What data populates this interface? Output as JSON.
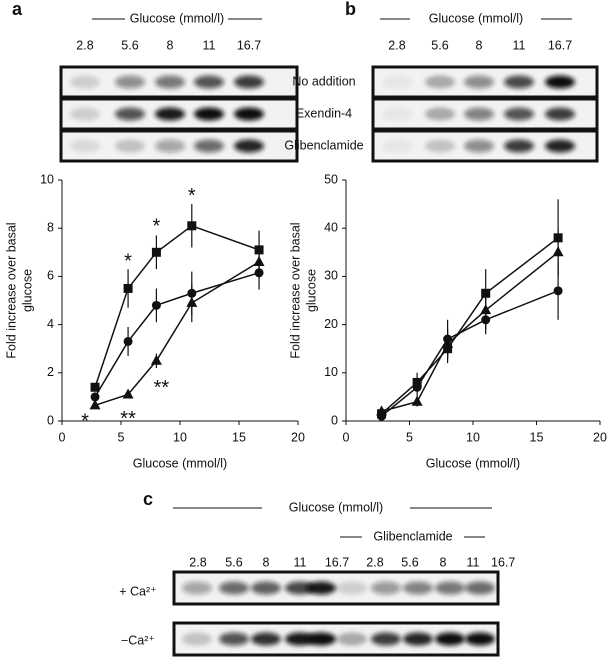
{
  "panel_labels": [
    "a",
    "b",
    "c"
  ],
  "blots": {
    "a": {
      "header": "Glucose (mmol/l)",
      "concentrations": [
        2.8,
        5.6,
        8,
        11,
        16.7
      ],
      "rows": [
        "No addition",
        "Exendin-4",
        "Glibenclamide"
      ]
    },
    "b": {
      "header": "Glucose (mmol/l)",
      "concentrations": [
        2.8,
        5.6,
        8,
        11,
        16.7
      ]
    },
    "c": {
      "header": "Glucose (mmol/l)",
      "subheader": "Glibenclamide",
      "concentrations": [
        2.8,
        5.6,
        8,
        11,
        16.7,
        2.8,
        5.6,
        8,
        11,
        16.7
      ],
      "rows": [
        "+ Ca²⁺",
        "−Ca²⁺"
      ]
    }
  },
  "chart_data": [
    {
      "type": "line",
      "xlabel": "Glucose (mmol/l)",
      "ylabel": [
        "Fold increase over basal",
        "glucose"
      ],
      "x": [
        2.8,
        5.6,
        8,
        11,
        16.7
      ],
      "xlim": [
        0,
        20
      ],
      "xticks": [
        0,
        5,
        10,
        15,
        20
      ],
      "ylim": [
        0,
        10
      ],
      "yticks": [
        0,
        2,
        4,
        6,
        8,
        10
      ],
      "series": [
        {
          "marker": "square",
          "color": "#111111",
          "values": [
            1.4,
            5.5,
            7.0,
            8.1,
            7.1
          ],
          "errors": [
            0.1,
            0.8,
            0.7,
            0.9,
            0.8
          ]
        },
        {
          "marker": "circle",
          "color": "#111111",
          "values": [
            1.0,
            3.3,
            4.8,
            5.3,
            6.15
          ],
          "errors": [
            0.1,
            0.6,
            0.7,
            0.9,
            0.7
          ]
        },
        {
          "marker": "triangle",
          "color": "#111111",
          "values": [
            0.65,
            1.1,
            2.5,
            4.9,
            6.6
          ],
          "errors": [
            0.05,
            0.1,
            0.3,
            0.8,
            0.7
          ]
        }
      ],
      "annotations": [
        "*",
        "*",
        "*",
        "*",
        "**",
        "**"
      ]
    },
    {
      "type": "line",
      "xlabel": "Glucose (mmol/l)",
      "ylabel": [
        "Fold increase over basal",
        "glucose"
      ],
      "x": [
        2.8,
        5.6,
        8,
        11,
        16.7
      ],
      "xlim": [
        0,
        20
      ],
      "xticks": [
        0,
        5,
        10,
        15,
        20
      ],
      "ylim": [
        0,
        50
      ],
      "yticks": [
        0,
        10,
        20,
        30,
        40,
        50
      ],
      "series": [
        {
          "marker": "square",
          "color": "#111111",
          "values": [
            1.5,
            8,
            15,
            26.5,
            38
          ],
          "errors": [
            0.5,
            2,
            3,
            5,
            8
          ]
        },
        {
          "marker": "circle",
          "color": "#111111",
          "values": [
            1,
            7,
            17,
            21,
            27
          ],
          "errors": [
            0.5,
            2,
            4,
            3,
            6
          ]
        },
        {
          "marker": "triangle",
          "color": "#111111",
          "values": [
            2,
            4,
            16,
            23,
            35
          ],
          "errors": [
            0.5,
            1,
            3,
            4,
            5
          ]
        }
      ]
    }
  ]
}
